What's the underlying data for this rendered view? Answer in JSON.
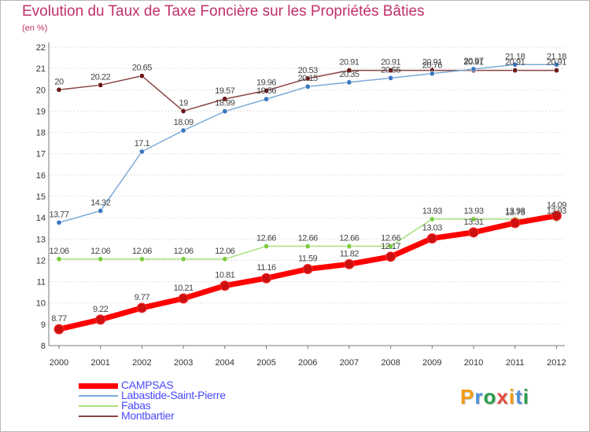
{
  "page": {
    "title": "Evolution du Taux de Taxe Foncière sur les Propriétés Bâties",
    "unit": "(en %)"
  },
  "logo": {
    "text": "Proxiti",
    "letters": [
      {
        "ch": "P",
        "color": "#f39c12"
      },
      {
        "ch": "r",
        "color": "#4a90d9"
      },
      {
        "ch": "o",
        "color": "#2a9d4a"
      },
      {
        "ch": "x",
        "color": "#e74c3c"
      },
      {
        "ch": "i",
        "color": "#f39c12"
      },
      {
        "ch": "t",
        "color": "#4a90d9"
      },
      {
        "ch": "i",
        "color": "#2a9d4a"
      }
    ]
  },
  "chart_data": {
    "type": "line",
    "title": "Evolution du Taux de Taxe Foncière sur les Propriétés Bâties",
    "ylabel": "(en %)",
    "x": [
      "2000",
      "2001",
      "2002",
      "2003",
      "2004",
      "2005",
      "2006",
      "2007",
      "2008",
      "2009",
      "2010",
      "2011",
      "2012"
    ],
    "y_ticks": [
      "8",
      "9",
      "10",
      "11",
      "12",
      "13",
      "14",
      "15",
      "16",
      "17",
      "18",
      "19",
      "20",
      "21",
      "22"
    ],
    "ylim": [
      8,
      22
    ],
    "grid": "horizontal-dotted",
    "legend_position": "bottom-left",
    "series": [
      {
        "name": "CAMPSAS",
        "color": "#ff0000",
        "marker": "#cc1010",
        "width": 7,
        "radius": 6,
        "values": [
          8.77,
          9.22,
          9.77,
          10.21,
          10.81,
          11.16,
          11.59,
          11.82,
          12.17,
          13.03,
          13.31,
          13.75,
          14.09
        ],
        "labels": [
          "8.77",
          "9.22",
          "9.77",
          "10.21",
          "10.81",
          "11.16",
          "11.59",
          "11.82",
          "12.17",
          "13.03",
          "13.31",
          "13.75",
          "14.09"
        ]
      },
      {
        "name": "Labastide-Saint-Pierre",
        "color": "#7aaad8",
        "marker": "#3a78c2",
        "width": 1.5,
        "radius": 3.2,
        "values": [
          13.77,
          14.32,
          17.1,
          18.09,
          18.99,
          19.56,
          20.15,
          20.35,
          20.55,
          20.76,
          20.97,
          21.18,
          21.18
        ],
        "labels": [
          "13.77",
          "14.32",
          "17.1",
          "18.09",
          "18.99",
          "19.56",
          "20.15",
          "20.35",
          "20.55",
          "20.76",
          "20.97",
          "21.18",
          "21.18"
        ]
      },
      {
        "name": "Fabas",
        "color": "#a8e07a",
        "marker": "#7ccc40",
        "width": 1.5,
        "radius": 3.2,
        "values": [
          12.06,
          12.06,
          12.06,
          12.06,
          12.06,
          12.66,
          12.66,
          12.66,
          12.66,
          13.93,
          13.93,
          13.93,
          13.93
        ],
        "labels": [
          "12.06",
          "12.06",
          "12.06",
          "12.06",
          "12.06",
          "12.66",
          "12.66",
          "12.66",
          "12.66",
          "13.93",
          "13.93",
          "13.93",
          "13.93"
        ]
      },
      {
        "name": "Montbartier",
        "color": "#8a4444",
        "marker": "#6a1a1a",
        "width": 1.5,
        "radius": 3.2,
        "values": [
          20,
          20.22,
          20.65,
          19,
          19.57,
          19.96,
          20.53,
          20.91,
          20.91,
          20.91,
          20.91,
          20.91,
          20.91
        ],
        "labels": [
          "20",
          "20.22",
          "20.65",
          "19",
          "19.57",
          "19.96",
          "20.53",
          "20.91",
          "20.91",
          "20.91",
          "20.91",
          "20.91",
          "20.91"
        ]
      }
    ]
  }
}
